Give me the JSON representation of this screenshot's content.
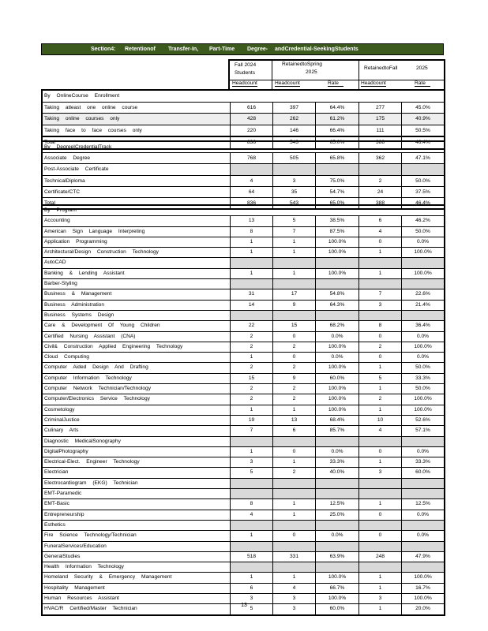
{
  "title": [
    "Section4:",
    "Retentionof",
    "Transfer-In,",
    "Part-Time",
    "Degree-",
    "andCredential-SeekingStudents"
  ],
  "header": {
    "fall_2024": "Fall   2024",
    "students": "Students",
    "retained_spring": "RetainedtoSpring",
    "spring_year": "2025",
    "retained_fall": "RetainedtoFall",
    "fall_year": "2025",
    "headcount": "Headcount",
    "rate": "Rate"
  },
  "sections": [
    {
      "heading": "By  OnlineCourse     Enrollment",
      "rows": [
        {
          "label": "Taking atleast one online course",
          "values": [
            "616",
            "397",
            "64.4%",
            "277",
            "45.0%"
          ]
        },
        {
          "label": "  Taking online courses only",
          "values": [
            "428",
            "262",
            "61.2%",
            "175",
            "40.9%"
          ],
          "alt": true
        },
        {
          "label": "Taking face to face courses only",
          "values": [
            "220",
            "146",
            "66.4%",
            "111",
            "50.5%"
          ]
        },
        {
          "label": "Total",
          "values": [
            "836",
            "543",
            "65.0%",
            "388",
            "46.4%"
          ],
          "total": true
        }
      ]
    },
    {
      "heading": "By  DegreeICredentialTrack",
      "rows": [
        {
          "label": "Associate Degree",
          "values": [
            "768",
            "505",
            "65.8%",
            "362",
            "47.1%"
          ]
        },
        {
          "label": "Post-Associate Certificate",
          "values": null
        },
        {
          "label": "TechnicalDiploma",
          "values": [
            "4",
            "3",
            "75.0%",
            "2",
            "50.0%"
          ]
        },
        {
          "label": "Certificate/CTC",
          "values": [
            "64",
            "35",
            "54.7%",
            "24",
            "37.5%"
          ]
        },
        {
          "label": "Total",
          "values": [
            "836",
            "543",
            "65.0%",
            "388",
            "46.4%"
          ]
        }
      ]
    },
    {
      "heading": "By  Program",
      "rows": [
        {
          "label": "Accounting",
          "values": [
            "13",
            "5",
            "38.5%",
            "6",
            "46.2%"
          ]
        },
        {
          "label": "American Sign Language Interpreting",
          "values": [
            "8",
            "7",
            "87.5%",
            "4",
            "50.0%"
          ]
        },
        {
          "label": "Application Programming",
          "values": [
            "1",
            "1",
            "100.0%",
            "0",
            "0.0%"
          ]
        },
        {
          "label": "Architectural/Design Construction Technology",
          "values": [
            "1",
            "1",
            "100.0%",
            "1",
            "100.0%"
          ]
        },
        {
          "label": "AutoCAD",
          "values": null
        },
        {
          "label": "Banking & Lending Assistant",
          "values": [
            "1",
            "1",
            "100.0%",
            "1",
            "100.0%"
          ]
        },
        {
          "label": "Barber-Styling",
          "values": null
        },
        {
          "label": "Business & Management",
          "values": [
            "31",
            "17",
            "54.8%",
            "7",
            "22.6%"
          ]
        },
        {
          "label": "Business Administration",
          "values": [
            "14",
            "9",
            "64.3%",
            "3",
            "21.4%"
          ]
        },
        {
          "label": "Business Systems Design",
          "values": null
        },
        {
          "label": "Care & Development Of Young Children",
          "values": [
            "22",
            "15",
            "68.2%",
            "8",
            "36.4%"
          ]
        },
        {
          "label": "Certified Nursing Assistant (CNA)",
          "values": [
            "2",
            "0",
            "0.0%",
            "0",
            "0.0%"
          ]
        },
        {
          "label": "Civil& Construction Applied Engineering Technology",
          "values": [
            "2",
            "2",
            "100.0%",
            "2",
            "100.0%"
          ]
        },
        {
          "label": "Cloud Computing",
          "values": [
            "1",
            "0",
            "0.0%",
            "0",
            "0.0%"
          ]
        },
        {
          "label": "Computer Aided Design And Drafting",
          "values": [
            "2",
            "2",
            "100.0%",
            "1",
            "50.0%"
          ]
        },
        {
          "label": "Computer Information Technology",
          "values": [
            "15",
            "9",
            "60.0%",
            "5",
            "33.3%"
          ]
        },
        {
          "label": "Computer Network Technician/Technology",
          "values": [
            "2",
            "2",
            "100.0%",
            "1",
            "50.0%"
          ]
        },
        {
          "label": "Computer/Electronics Service Technology",
          "values": [
            "2",
            "2",
            "100.0%",
            "2",
            "100.0%"
          ]
        },
        {
          "label": "Cosmetology",
          "values": [
            "1",
            "1",
            "100.0%",
            "1",
            "100.0%"
          ]
        },
        {
          "label": "CriminalJustice",
          "values": [
            "19",
            "13",
            "68.4%",
            "10",
            "52.6%"
          ]
        },
        {
          "label": "Culinary Arts",
          "values": [
            "7",
            "6",
            "85.7%",
            "4",
            "57.1%"
          ]
        },
        {
          "label": "Diagnostic MedicalSonography",
          "values": null
        },
        {
          "label": "DigitalPhotography",
          "values": [
            "1",
            "0",
            "0.0%",
            "0",
            "0.0%"
          ]
        },
        {
          "label": "Electrical-Elect. Engineer Technology",
          "values": [
            "3",
            "1",
            "33.3%",
            "1",
            "33.3%"
          ]
        },
        {
          "label": "Electrician",
          "values": [
            "5",
            "2",
            "40.0%",
            "3",
            "60.0%"
          ]
        },
        {
          "label": "Electrocardiogram (EKG) Technician",
          "values": null
        },
        {
          "label": "EMT-Paramedic",
          "values": null
        },
        {
          "label": "EMT-Basic",
          "values": [
            "8",
            "1",
            "12.5%",
            "1",
            "12.5%"
          ]
        },
        {
          "label": "Entrepreneurship",
          "values": [
            "4",
            "1",
            "25.0%",
            "0",
            "0.0%"
          ]
        },
        {
          "label": "Esthetics",
          "values": null
        },
        {
          "label": "Fire Science Technology/Technician",
          "values": [
            "1",
            "0",
            "0.0%",
            "0",
            "0.0%"
          ]
        },
        {
          "label": "FuneralServices/Education",
          "values": null
        },
        {
          "label": "GeneralStudies",
          "values": [
            "518",
            "331",
            "63.9%",
            "248",
            "47.9%"
          ]
        },
        {
          "label": "Health Information Technology",
          "values": null
        },
        {
          "label": "Homeland Security & Emergency Management",
          "values": [
            "1",
            "1",
            "100.0%",
            "1",
            "100.0%"
          ]
        },
        {
          "label": "Hospitality Management",
          "values": [
            "6",
            "4",
            "66.7%",
            "1",
            "16.7%"
          ]
        },
        {
          "label": "Human Resources Assistant",
          "values": [
            "3",
            "3",
            "100.0%",
            "3",
            "100.0%"
          ]
        },
        {
          "label": "HVAC/R Certified/Master Technician",
          "values": [
            "5",
            "3",
            "60.0%",
            "1",
            "20.0%"
          ]
        }
      ]
    }
  ],
  "page_number": "13"
}
